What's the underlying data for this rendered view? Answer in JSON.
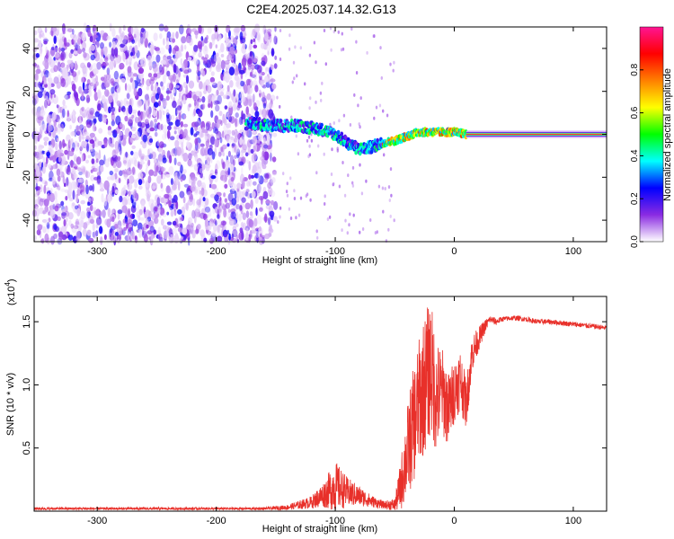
{
  "title": "C2E4.2025.037.14.32.G13",
  "chart_data": [
    {
      "type": "heatmap",
      "xlabel": "Height of straight line (km)",
      "ylabel": "Frequency (Hz)",
      "xlim": [
        -353,
        128
      ],
      "ylim": [
        -50,
        50
      ],
      "xticks": [
        -300,
        -200,
        -100,
        0,
        100
      ],
      "yticks": [
        -40,
        -20,
        0,
        20,
        40
      ],
      "colorbar": {
        "label": "Normalized spectral amplitude",
        "range": [
          0,
          1
        ],
        "ticks": [
          "0.0",
          "0.2",
          "0.4",
          "0.6",
          "0.8"
        ],
        "colormap": [
          "#ffffff",
          "#8a2be2",
          "#0000ff",
          "#00ffff",
          "#00ff00",
          "#ffff00",
          "#ff8000",
          "#ff0000",
          "#ff1493"
        ]
      },
      "ridge": [
        {
          "x": -270,
          "f": 5
        },
        {
          "x": -230,
          "f": 4
        },
        {
          "x": -190,
          "f": 3
        },
        {
          "x": -170,
          "f": 5
        },
        {
          "x": -150,
          "f": 4
        },
        {
          "x": -130,
          "f": 4
        },
        {
          "x": -110,
          "f": 2
        },
        {
          "x": -100,
          "f": 0
        },
        {
          "x": -90,
          "f": -4
        },
        {
          "x": -80,
          "f": -7
        },
        {
          "x": -70,
          "f": -6
        },
        {
          "x": -60,
          "f": -4
        },
        {
          "x": -50,
          "f": -3
        },
        {
          "x": -40,
          "f": -1
        },
        {
          "x": -30,
          "f": 1
        },
        {
          "x": -20,
          "f": 1
        },
        {
          "x": -10,
          "f": 1
        },
        {
          "x": 0,
          "f": 1
        },
        {
          "x": 10,
          "f": 0
        },
        {
          "x": 128,
          "f": 0
        }
      ]
    },
    {
      "type": "line",
      "xlabel": "Height of straight line (km)",
      "ylabel": "SNR (10 * v/v)",
      "y_scale_label": "(x10",
      "y_scale_exponent": "4",
      "xlim": [
        -353,
        128
      ],
      "ylim": [
        0,
        1.7
      ],
      "xticks": [
        -300,
        -200,
        -100,
        0,
        100
      ],
      "yticks": [
        "0.5",
        "1.0",
        "1.5"
      ],
      "color": "#e8302a",
      "series": [
        {
          "x": [
            -353,
            -300,
            -250,
            -200,
            -160,
            -140,
            -120,
            -110,
            -100,
            -90,
            -80,
            -70,
            -60,
            -50,
            -45,
            -40,
            -35,
            -30,
            -25,
            -20,
            -15,
            -10,
            -5,
            0,
            5,
            10,
            15,
            20,
            25,
            30,
            35,
            40,
            50,
            60,
            70,
            80,
            90,
            100,
            110,
            120,
            128
          ],
          "y": [
            0.02,
            0.02,
            0.02,
            0.02,
            0.02,
            0.03,
            0.07,
            0.13,
            0.2,
            0.15,
            0.12,
            0.08,
            0.05,
            0.05,
            0.2,
            0.45,
            0.65,
            0.85,
            1.0,
            1.15,
            0.9,
            0.95,
            0.8,
            0.95,
            1.05,
            0.85,
            1.25,
            1.35,
            1.45,
            1.52,
            1.5,
            1.52,
            1.53,
            1.52,
            1.5,
            1.5,
            1.49,
            1.48,
            1.47,
            1.46,
            1.45
          ],
          "spread": [
            0.01,
            0.01,
            0.01,
            0.01,
            0.01,
            0.02,
            0.05,
            0.1,
            0.2,
            0.12,
            0.08,
            0.05,
            0.03,
            0.05,
            0.2,
            0.35,
            0.45,
            0.5,
            0.55,
            0.55,
            0.45,
            0.35,
            0.3,
            0.25,
            0.25,
            0.2,
            0.15,
            0.1,
            0.06,
            0.03,
            0.03,
            0.02,
            0.02,
            0.02,
            0.02,
            0.02,
            0.02,
            0.02,
            0.02,
            0.02,
            0.02
          ]
        }
      ]
    }
  ]
}
